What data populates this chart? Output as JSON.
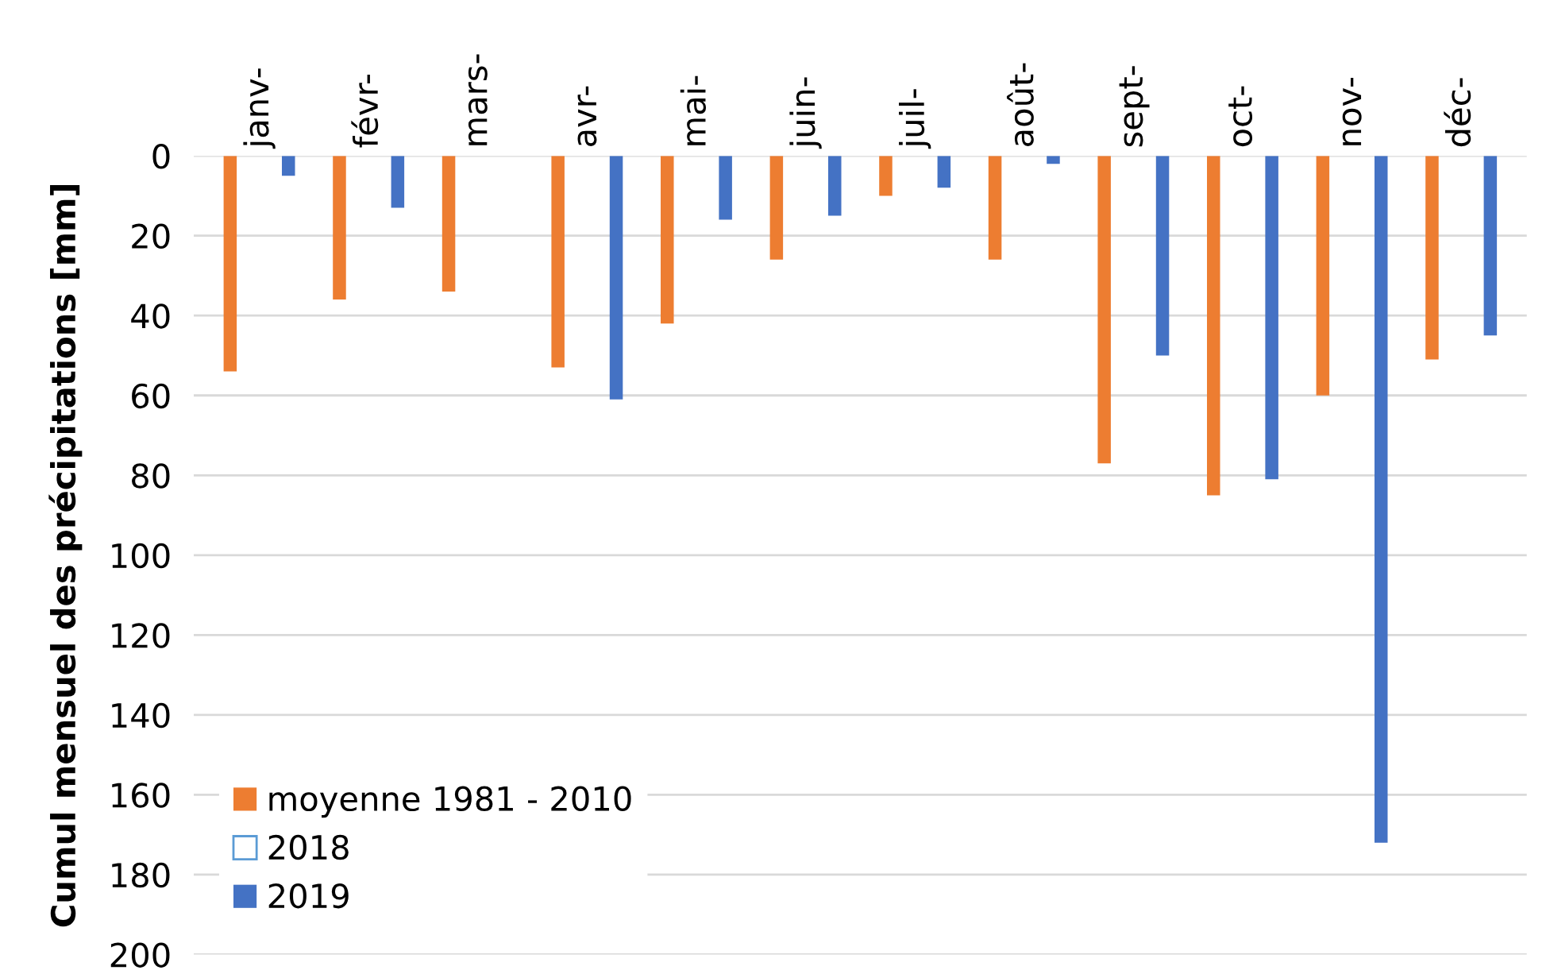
{
  "chart_data": {
    "type": "bar",
    "ylabel": "Cumul mensuel des précipitations [mm]",
    "categories": [
      "janv-",
      "févr-",
      "mars-",
      "avr-",
      "mai-",
      "juin-",
      "juil-",
      "août-",
      "sept-",
      "oct-",
      "nov-",
      "déc-"
    ],
    "series": [
      {
        "name": "moyenne 1981 - 2010",
        "color": "#ed7d31",
        "values": [
          54,
          36,
          34,
          53,
          42,
          26,
          10,
          26,
          77,
          85,
          60,
          51
        ]
      },
      {
        "name": "2018",
        "color": "#5b9bd5",
        "values": [
          null,
          null,
          null,
          null,
          null,
          null,
          null,
          null,
          null,
          null,
          null,
          null
        ]
      },
      {
        "name": "2019",
        "color": "#4472c4",
        "values": [
          5,
          13,
          null,
          61,
          16,
          15,
          8,
          2,
          50,
          81,
          172,
          45
        ]
      }
    ],
    "ylim": [
      200,
      0
    ],
    "yticks": [
      0,
      20,
      40,
      60,
      80,
      100,
      120,
      140,
      160,
      180,
      200
    ],
    "grid": "y",
    "legend": "bottom left"
  }
}
